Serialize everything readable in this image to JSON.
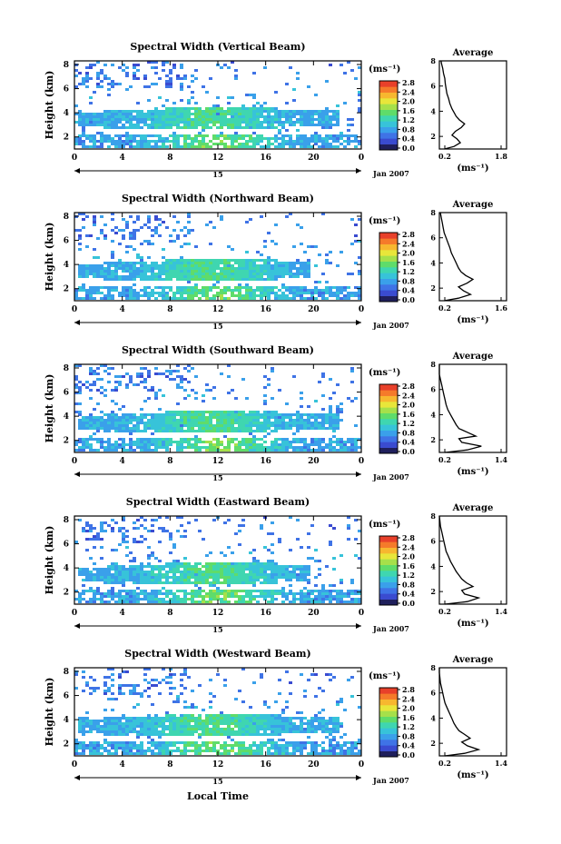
{
  "common": {
    "height_axis_label": "Height (km)",
    "height_ticks": [
      "2",
      "4",
      "6",
      "8"
    ],
    "time_ticks": [
      "0",
      "4",
      "8",
      "12",
      "16",
      "20",
      "0"
    ],
    "date_day": "15",
    "date_month": "Jan 2007",
    "colorbar_unit": "(ms⁻¹)",
    "colorbar_ticks": [
      "0.0",
      "0.4",
      "0.8",
      "1.2",
      "1.6",
      "2.0",
      "2.4",
      "2.8"
    ],
    "colorbar_colors": [
      "#1f1f5c",
      "#3a4bd0",
      "#3f73e6",
      "#3aa0ea",
      "#37c3d9",
      "#3fd6b0",
      "#5fdc6a",
      "#a6e04a",
      "#e8e63a",
      "#f7b72f",
      "#f57a2a",
      "#e8402a"
    ],
    "average_title": "Average",
    "average_xlabel": "(ms⁻¹)",
    "xlabel": "Local Time"
  },
  "chart_data": [
    {
      "type": "heatmap",
      "title": "Spectral Width (Vertical Beam)",
      "avg_xticks": [
        "0.2",
        "1.8"
      ],
      "avg_xlim": [
        0.2,
        1.8
      ],
      "avg_ylim": [
        1,
        8
      ],
      "avg_profile": [
        [
          0.32,
          1.0
        ],
        [
          0.55,
          1.2
        ],
        [
          0.7,
          1.5
        ],
        [
          0.62,
          1.8
        ],
        [
          0.5,
          2.1
        ],
        [
          0.58,
          2.4
        ],
        [
          0.72,
          2.7
        ],
        [
          0.8,
          3.0
        ],
        [
          0.68,
          3.3
        ],
        [
          0.6,
          3.6
        ],
        [
          0.55,
          3.9
        ],
        [
          0.5,
          4.2
        ],
        [
          0.45,
          4.6
        ],
        [
          0.42,
          5.0
        ],
        [
          0.38,
          5.4
        ],
        [
          0.36,
          5.8
        ],
        [
          0.34,
          6.2
        ],
        [
          0.33,
          6.6
        ],
        [
          0.3,
          7.0
        ],
        [
          0.28,
          7.4
        ],
        [
          0.25,
          7.8
        ],
        [
          0.24,
          8.0
        ]
      ]
    },
    {
      "type": "heatmap",
      "title": "Spectral Width (Northward Beam)",
      "avg_xticks": [
        "0.2",
        "1.6"
      ],
      "avg_xlim": [
        0.2,
        1.6
      ],
      "avg_ylim": [
        1,
        8
      ],
      "avg_profile": [
        [
          0.3,
          1.0
        ],
        [
          0.6,
          1.2
        ],
        [
          0.85,
          1.5
        ],
        [
          0.7,
          1.8
        ],
        [
          0.6,
          2.1
        ],
        [
          0.78,
          2.4
        ],
        [
          0.9,
          2.7
        ],
        [
          0.75,
          3.0
        ],
        [
          0.65,
          3.3
        ],
        [
          0.6,
          3.6
        ],
        [
          0.55,
          4.0
        ],
        [
          0.5,
          4.4
        ],
        [
          0.45,
          4.8
        ],
        [
          0.42,
          5.2
        ],
        [
          0.38,
          5.6
        ],
        [
          0.34,
          6.0
        ],
        [
          0.3,
          6.4
        ],
        [
          0.28,
          6.8
        ],
        [
          0.26,
          7.2
        ],
        [
          0.24,
          7.6
        ],
        [
          0.22,
          8.0
        ]
      ]
    },
    {
      "type": "heatmap",
      "title": "Spectral Width (Southward Beam)",
      "avg_xticks": [
        "0.2",
        "1.4"
      ],
      "avg_xlim": [
        0.2,
        1.4
      ],
      "avg_ylim": [
        1,
        8
      ],
      "avg_profile": [
        [
          0.3,
          1.0
        ],
        [
          0.7,
          1.2
        ],
        [
          0.95,
          1.5
        ],
        [
          0.6,
          1.8
        ],
        [
          0.55,
          2.1
        ],
        [
          0.85,
          2.3
        ],
        [
          0.7,
          2.6
        ],
        [
          0.55,
          2.9
        ],
        [
          0.5,
          3.2
        ],
        [
          0.45,
          3.6
        ],
        [
          0.4,
          4.0
        ],
        [
          0.35,
          4.4
        ],
        [
          0.32,
          4.8
        ],
        [
          0.3,
          5.2
        ],
        [
          0.28,
          5.6
        ],
        [
          0.26,
          6.0
        ],
        [
          0.24,
          6.4
        ],
        [
          0.22,
          6.8
        ],
        [
          0.2,
          7.2
        ],
        [
          0.2,
          7.6
        ],
        [
          0.2,
          8.0
        ]
      ]
    },
    {
      "type": "heatmap",
      "title": "Spectral Width (Eastward Beam)",
      "avg_xticks": [
        "0.2",
        "1.4"
      ],
      "avg_xlim": [
        0.2,
        1.4
      ],
      "avg_ylim": [
        1,
        8
      ],
      "avg_profile": [
        [
          0.3,
          1.0
        ],
        [
          0.7,
          1.2
        ],
        [
          0.9,
          1.5
        ],
        [
          0.65,
          1.8
        ],
        [
          0.6,
          2.1
        ],
        [
          0.8,
          2.4
        ],
        [
          0.68,
          2.7
        ],
        [
          0.6,
          3.0
        ],
        [
          0.55,
          3.3
        ],
        [
          0.5,
          3.6
        ],
        [
          0.45,
          4.0
        ],
        [
          0.4,
          4.4
        ],
        [
          0.36,
          4.8
        ],
        [
          0.32,
          5.2
        ],
        [
          0.3,
          5.6
        ],
        [
          0.28,
          6.0
        ],
        [
          0.26,
          6.4
        ],
        [
          0.24,
          6.8
        ],
        [
          0.22,
          7.2
        ],
        [
          0.21,
          7.6
        ],
        [
          0.2,
          8.0
        ]
      ]
    },
    {
      "type": "heatmap",
      "title": "Spectral Width (Westward Beam)",
      "avg_xticks": [
        "0.2",
        "1.4"
      ],
      "avg_xlim": [
        0.2,
        1.4
      ],
      "avg_ylim": [
        1,
        8
      ],
      "avg_profile": [
        [
          0.3,
          1.0
        ],
        [
          0.65,
          1.2
        ],
        [
          0.9,
          1.5
        ],
        [
          0.7,
          1.8
        ],
        [
          0.6,
          2.1
        ],
        [
          0.75,
          2.4
        ],
        [
          0.65,
          2.7
        ],
        [
          0.55,
          3.0
        ],
        [
          0.5,
          3.3
        ],
        [
          0.46,
          3.6
        ],
        [
          0.42,
          4.0
        ],
        [
          0.38,
          4.4
        ],
        [
          0.34,
          4.8
        ],
        [
          0.3,
          5.2
        ],
        [
          0.28,
          5.6
        ],
        [
          0.26,
          6.0
        ],
        [
          0.24,
          6.4
        ],
        [
          0.22,
          6.8
        ],
        [
          0.21,
          7.2
        ],
        [
          0.2,
          7.6
        ],
        [
          0.2,
          8.0
        ]
      ]
    }
  ]
}
